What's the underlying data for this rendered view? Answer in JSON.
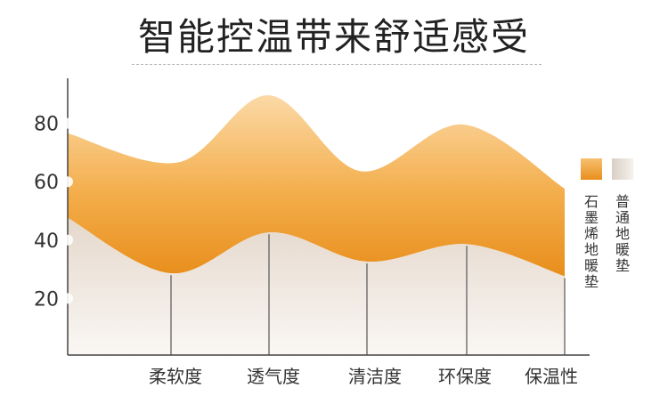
{
  "page_title": "智能控温带来舒适感受",
  "chart_data": {
    "type": "area",
    "categories": [
      "柔软度",
      "透气度",
      "清洁度",
      "环保度",
      "保温性"
    ],
    "yticks": [
      20,
      40,
      60,
      80
    ],
    "ylim": [
      0,
      100
    ],
    "series": [
      {
        "name": "石墨烯地暖垫",
        "values": [
          66,
          89,
          63,
          79,
          57
        ],
        "color": "#f0a030"
      },
      {
        "name": "普通地暖垫",
        "values": [
          28,
          42,
          32,
          38,
          27
        ],
        "color": "#e6dcd4"
      }
    ],
    "legend_position": "right",
    "grid": false
  }
}
